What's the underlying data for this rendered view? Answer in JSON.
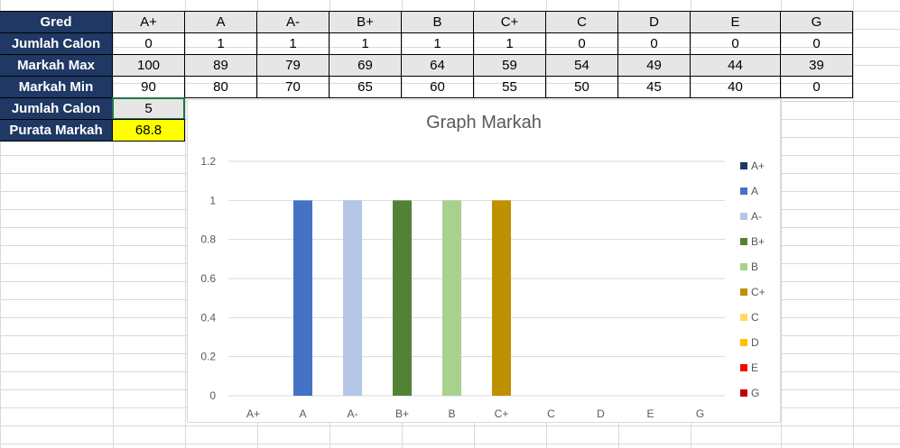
{
  "table": {
    "header": {
      "label": "Gred",
      "cols": [
        "A+",
        "A",
        "A-",
        "B+",
        "B",
        "C+",
        "C",
        "D",
        "E",
        "G"
      ]
    },
    "rows": [
      {
        "label": "Jumlah Calon",
        "values": [
          "0",
          "1",
          "1",
          "1",
          "1",
          "1",
          "0",
          "0",
          "0",
          "0"
        ]
      },
      {
        "label": "Markah Max",
        "values": [
          "100",
          "89",
          "79",
          "69",
          "64",
          "59",
          "54",
          "49",
          "44",
          "39"
        ]
      },
      {
        "label": "Markah Min",
        "values": [
          "90",
          "80",
          "70",
          "65",
          "60",
          "55",
          "50",
          "45",
          "40",
          "0"
        ]
      }
    ],
    "summary": [
      {
        "label": "Jumlah Calon",
        "value": "5"
      },
      {
        "label": "Purata Markah",
        "value": "68.8"
      }
    ]
  },
  "chart_data": {
    "type": "bar",
    "title": "Graph Markah",
    "categories": [
      "A+",
      "A",
      "A-",
      "B+",
      "B",
      "C+",
      "C",
      "D",
      "E",
      "G"
    ],
    "values": [
      0,
      1,
      1,
      1,
      1,
      1,
      0,
      0,
      0,
      0
    ],
    "colors": [
      "#1f3864",
      "#4472c4",
      "#b4c7e7",
      "#548235",
      "#a9d18e",
      "#bf9000",
      "#ffd966",
      "#ffc000",
      "#ff0000",
      "#c00000"
    ],
    "ylim": [
      0,
      1.2
    ],
    "yticks": [
      "0",
      "0.2",
      "0.4",
      "0.6",
      "0.8",
      "1",
      "1.2"
    ],
    "grid": true,
    "legend": "right"
  }
}
